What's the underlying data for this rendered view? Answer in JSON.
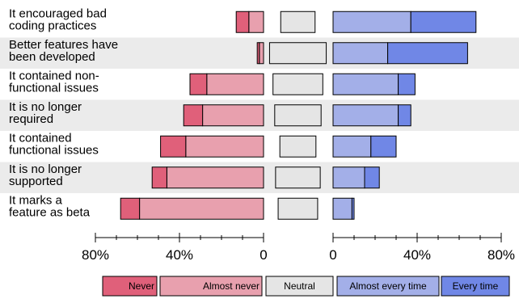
{
  "chart_data": {
    "type": "bar",
    "subtype": "diverging-stacked-horizontal",
    "title": "",
    "xlabel": "",
    "ylabel": "",
    "grid": false,
    "legend_position": "bottom",
    "categories": [
      "It encouraged bad coding practices",
      "Better features have been developed",
      "It contained non-functional issues",
      "It is no longer required",
      "It contained functional issues",
      "It is no longer supported",
      "It marks a feature as beta"
    ],
    "category_lines": [
      [
        "It encouraged bad",
        "coding practices"
      ],
      [
        "Better features have",
        "been developed"
      ],
      [
        "It contained non-",
        "functional issues"
      ],
      [
        "It is no longer",
        "required"
      ],
      [
        "It contained",
        "functional issues"
      ],
      [
        "It is no longer",
        "supported"
      ],
      [
        "It marks a",
        "feature as beta"
      ]
    ],
    "series": [
      {
        "name": "Never",
        "color": "#e0607a",
        "values": [
          6,
          1,
          8,
          9,
          12,
          7,
          9
        ]
      },
      {
        "name": "Almost never",
        "color": "#e8a0ae",
        "values": [
          7,
          2,
          27,
          29,
          37,
          46,
          59
        ]
      },
      {
        "name": "Neutral",
        "color": "#e5e5e5",
        "values": [
          20,
          33,
          29,
          27,
          21,
          26,
          23
        ]
      },
      {
        "name": "Almost every time",
        "color": "#a3afe8",
        "values": [
          37,
          26,
          31,
          31,
          18,
          15,
          9
        ]
      },
      {
        "name": "Every time",
        "color": "#7087e6",
        "values": [
          31,
          38,
          8,
          6,
          12,
          7,
          1
        ]
      }
    ],
    "left_axis": {
      "range": [
        0,
        80
      ],
      "ticks": [
        80,
        40,
        0
      ],
      "tick_labels": [
        "80%",
        "40%",
        "0"
      ]
    },
    "right_axis": {
      "range": [
        0,
        80
      ],
      "ticks": [
        0,
        40,
        80
      ],
      "tick_labels": [
        "0",
        "40%",
        "80%"
      ]
    },
    "neutral_axis": {
      "range": [
        0,
        40
      ]
    }
  }
}
